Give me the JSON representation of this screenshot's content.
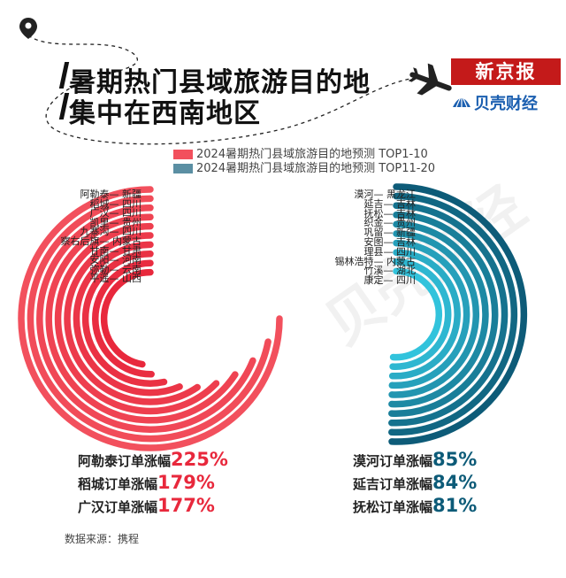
{
  "title": {
    "line1": "暑期热门县域旅游目的地",
    "line2": "集中在西南地区"
  },
  "brand": {
    "newspaper": "新京报",
    "finance": "贝壳财经"
  },
  "legend": {
    "top10": "2024暑期热门县域旅游目的地预测 TOP1-10",
    "top20": "2024暑期热门县域旅游目的地预测 TOP11-20"
  },
  "colors": {
    "top10": "#f2505d",
    "top10_inner": "#e8283c",
    "top20": "#0d5b78",
    "top20_inner": "#32c3dc"
  },
  "chart_data": {
    "type": "radial-bar",
    "groups": [
      {
        "legend": "2024暑期热门县域旅游目的地预测 TOP1-10",
        "destinations": [
          {
            "county": "阿勒泰",
            "province": "新疆"
          },
          {
            "county": "稻城",
            "province": "四川"
          },
          {
            "county": "广汉",
            "province": "四川"
          },
          {
            "county": "凯里",
            "province": "贵州"
          },
          {
            "county": "九寨沟",
            "province": "四川"
          },
          {
            "county": "察右后旗",
            "province": "内蒙古"
          },
          {
            "county": "甘南",
            "province": "甘肃"
          },
          {
            "county": "安阳",
            "province": "河南"
          },
          {
            "county": "弥勒",
            "province": "云南"
          },
          {
            "county": "平遥",
            "province": "山西"
          }
        ],
        "highlights": [
          {
            "label": "阿勒泰订单涨幅",
            "value": "225%"
          },
          {
            "label": "稻城订单涨幅",
            "value": "179%"
          },
          {
            "label": "广汉订单涨幅",
            "value": "177%"
          }
        ]
      },
      {
        "legend": "2024暑期热门县域旅游目的地预测 TOP11-20",
        "destinations": [
          {
            "county": "漠河",
            "province": "黑龙江"
          },
          {
            "county": "延吉",
            "province": "吉林"
          },
          {
            "county": "抚松",
            "province": "吉林"
          },
          {
            "county": "织金",
            "province": "贵州"
          },
          {
            "county": "巩留",
            "province": "新疆"
          },
          {
            "county": "安图",
            "province": "吉林"
          },
          {
            "county": "理县",
            "province": "四川"
          },
          {
            "county": "锡林浩特",
            "province": "内蒙古"
          },
          {
            "county": "竹溪",
            "province": "湖北"
          },
          {
            "county": "康定",
            "province": "四川"
          }
        ],
        "highlights": [
          {
            "label": "漠河订单涨幅",
            "value": "85%"
          },
          {
            "label": "延吉订单涨幅",
            "value": "84%"
          },
          {
            "label": "抚松订单涨幅",
            "value": "81%"
          }
        ]
      }
    ]
  },
  "source": "数据来源：携程",
  "watermark": "贝壳财经"
}
